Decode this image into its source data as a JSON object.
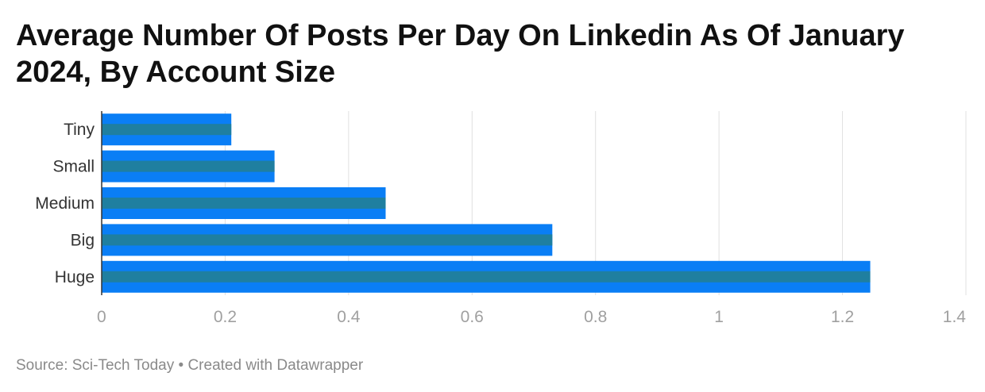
{
  "title": "Average Number Of Posts Per Day On Linkedin As Of January 2024, By Account Size",
  "footer": "Source: Sci-Tech Today • Created with Datawrapper",
  "colors": {
    "bar": "#0A7EF5",
    "bar_stripe": "#1F7FA0",
    "grid": "#e0e0e0",
    "axis_text": "#a0a0a0",
    "category_text": "#333333"
  },
  "chart_data": {
    "type": "bar",
    "orientation": "horizontal",
    "title": "Average Number Of Posts Per Day On Linkedin As Of January 2024, By Account Size",
    "categories": [
      "Tiny",
      "Small",
      "Medium",
      "Big",
      "Huge"
    ],
    "values": [
      0.21,
      0.28,
      0.46,
      0.73,
      1.245
    ],
    "xlim": [
      0,
      1.4
    ],
    "xticks": [
      "0",
      "0.2",
      "0.4",
      "0.6",
      "0.8",
      "1",
      "1.2",
      "1.4"
    ],
    "grid": true,
    "legend": "none"
  }
}
